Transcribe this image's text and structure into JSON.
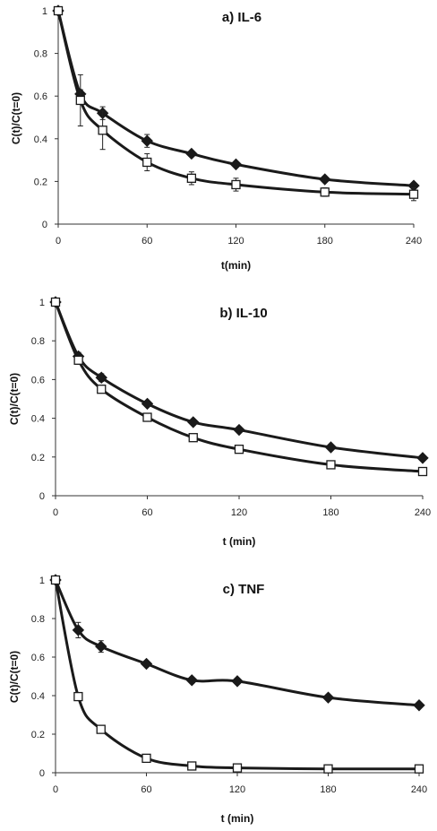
{
  "chart_data": [
    {
      "type": "line",
      "title": "a)  IL-6",
      "xlabel": "t(min)",
      "ylabel": "C(t)/C(t=0)",
      "xlim": [
        0,
        240
      ],
      "ylim": [
        0,
        1
      ],
      "xticks": [
        0,
        60,
        120,
        180,
        240
      ],
      "yticks": [
        0,
        0.2,
        0.4,
        0.6,
        0.8,
        1
      ],
      "grid": false,
      "legend": "none",
      "x": [
        0,
        15,
        30,
        60,
        90,
        120,
        180,
        240
      ],
      "series": [
        {
          "marker": "filled-diamond",
          "color": "#1a1a1a",
          "values": [
            1,
            0.61,
            0.52,
            0.39,
            0.33,
            0.28,
            0.21,
            0.18
          ],
          "errors": [
            0,
            0.02,
            0.03,
            0.03,
            0.01,
            0.01,
            0.01,
            0.01
          ]
        },
        {
          "marker": "open-square",
          "color": "#1a1a1a",
          "values": [
            1,
            0.58,
            0.44,
            0.29,
            0.215,
            0.185,
            0.15,
            0.14
          ],
          "errors": [
            0,
            0.12,
            0.09,
            0.04,
            0.03,
            0.03,
            0.02,
            0.03
          ]
        }
      ]
    },
    {
      "type": "line",
      "title": "b)  IL-10",
      "xlabel": "t (min)",
      "ylabel": "C(t)/C(t=0)",
      "xlim": [
        0,
        240
      ],
      "ylim": [
        0,
        1
      ],
      "xticks": [
        0,
        60,
        120,
        180,
        240
      ],
      "yticks": [
        0,
        0.2,
        0.4,
        0.6,
        0.8,
        1
      ],
      "grid": false,
      "legend": "none",
      "x": [
        0,
        15,
        30,
        60,
        90,
        120,
        180,
        240
      ],
      "series": [
        {
          "marker": "filled-diamond",
          "color": "#1a1a1a",
          "values": [
            1,
            0.72,
            0.61,
            0.475,
            0.38,
            0.34,
            0.25,
            0.195
          ],
          "errors": [
            0,
            0.02,
            0.02,
            0.01,
            0.01,
            0.01,
            0.01,
            0.01
          ]
        },
        {
          "marker": "open-square",
          "color": "#1a1a1a",
          "values": [
            1,
            0.7,
            0.55,
            0.405,
            0.3,
            0.24,
            0.16,
            0.125
          ],
          "errors": [
            0,
            0.02,
            0.01,
            0.01,
            0.01,
            0.01,
            0.01,
            0.01
          ]
        }
      ]
    },
    {
      "type": "line",
      "title": "c)  TNF",
      "xlabel": "t (min)",
      "ylabel": "C(t)/C(t=0)",
      "xlim": [
        0,
        240
      ],
      "ylim": [
        0,
        1
      ],
      "xticks": [
        0,
        60,
        120,
        180,
        240
      ],
      "yticks": [
        0,
        0.2,
        0.4,
        0.6,
        0.8,
        1
      ],
      "grid": false,
      "legend": "none",
      "x": [
        0,
        15,
        30,
        60,
        90,
        120,
        180,
        240
      ],
      "series": [
        {
          "marker": "filled-diamond",
          "color": "#1a1a1a",
          "values": [
            1,
            0.74,
            0.655,
            0.565,
            0.48,
            0.475,
            0.39,
            0.35
          ],
          "errors": [
            0,
            0.04,
            0.03,
            0.01,
            0.01,
            0.01,
            0.01,
            0.01
          ]
        },
        {
          "marker": "open-square",
          "color": "#1a1a1a",
          "values": [
            1,
            0.395,
            0.225,
            0.075,
            0.035,
            0.025,
            0.02,
            0.02
          ],
          "errors": [
            0,
            0.01,
            0.01,
            0.01,
            0.01,
            0.01,
            0.01,
            0.01
          ]
        }
      ]
    }
  ]
}
